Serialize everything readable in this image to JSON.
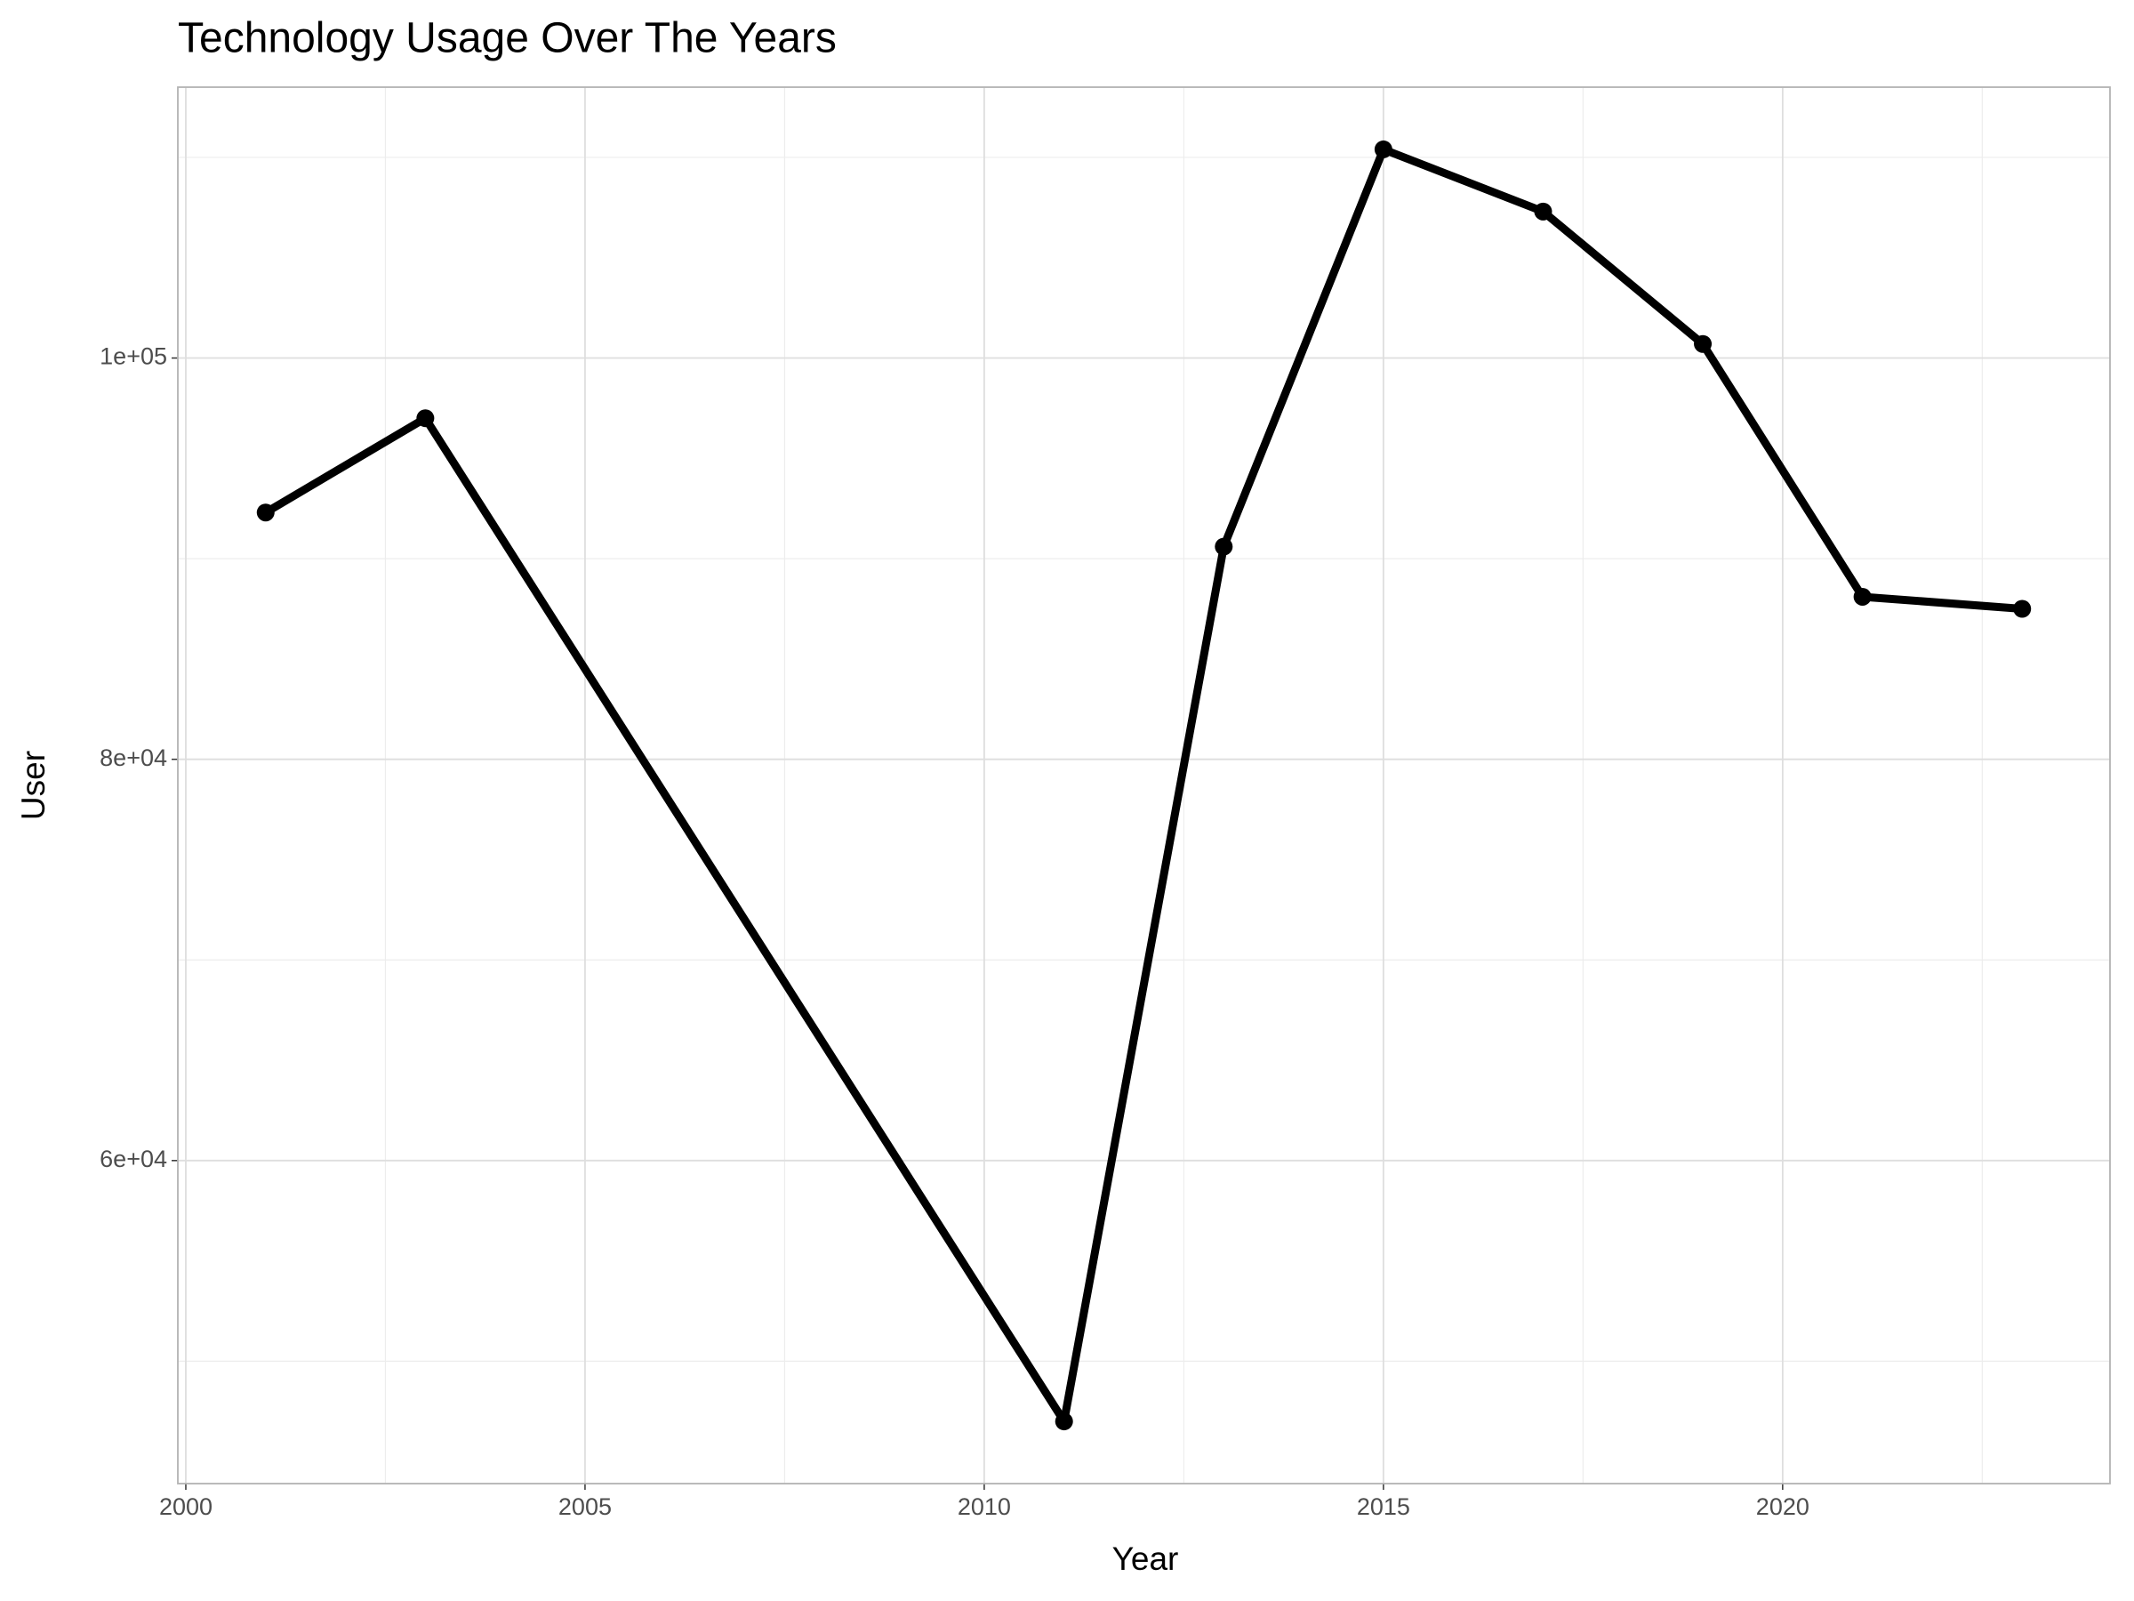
{
  "chart_data": {
    "type": "line",
    "title": "Technology Usage Over The Years",
    "x_label": "Year",
    "y_label": "User",
    "x": [
      2001,
      2003,
      2011,
      2013,
      2015,
      2017,
      2019,
      2021,
      2023
    ],
    "values": [
      92300,
      97000,
      47000,
      90600,
      110400,
      107300,
      100700,
      88100,
      87500
    ],
    "color": "#000000",
    "xlim": [
      1999.9,
      2024.1
    ],
    "xticks": [
      2000,
      2005,
      2010,
      2015,
      2020
    ],
    "x_minor_ticks": [
      2002.5,
      2007.5,
      2012.5,
      2017.5,
      2022.5
    ],
    "ylim": [
      43900,
      113500
    ],
    "yticks": [
      {
        "value": 60000,
        "label": "6e+04"
      },
      {
        "value": 80000,
        "label": "8e+04"
      },
      {
        "value": 100000,
        "label": "1e+05"
      }
    ],
    "y_minor_ticks": [
      50000,
      70000,
      90000,
      110000
    ],
    "grid": true
  }
}
